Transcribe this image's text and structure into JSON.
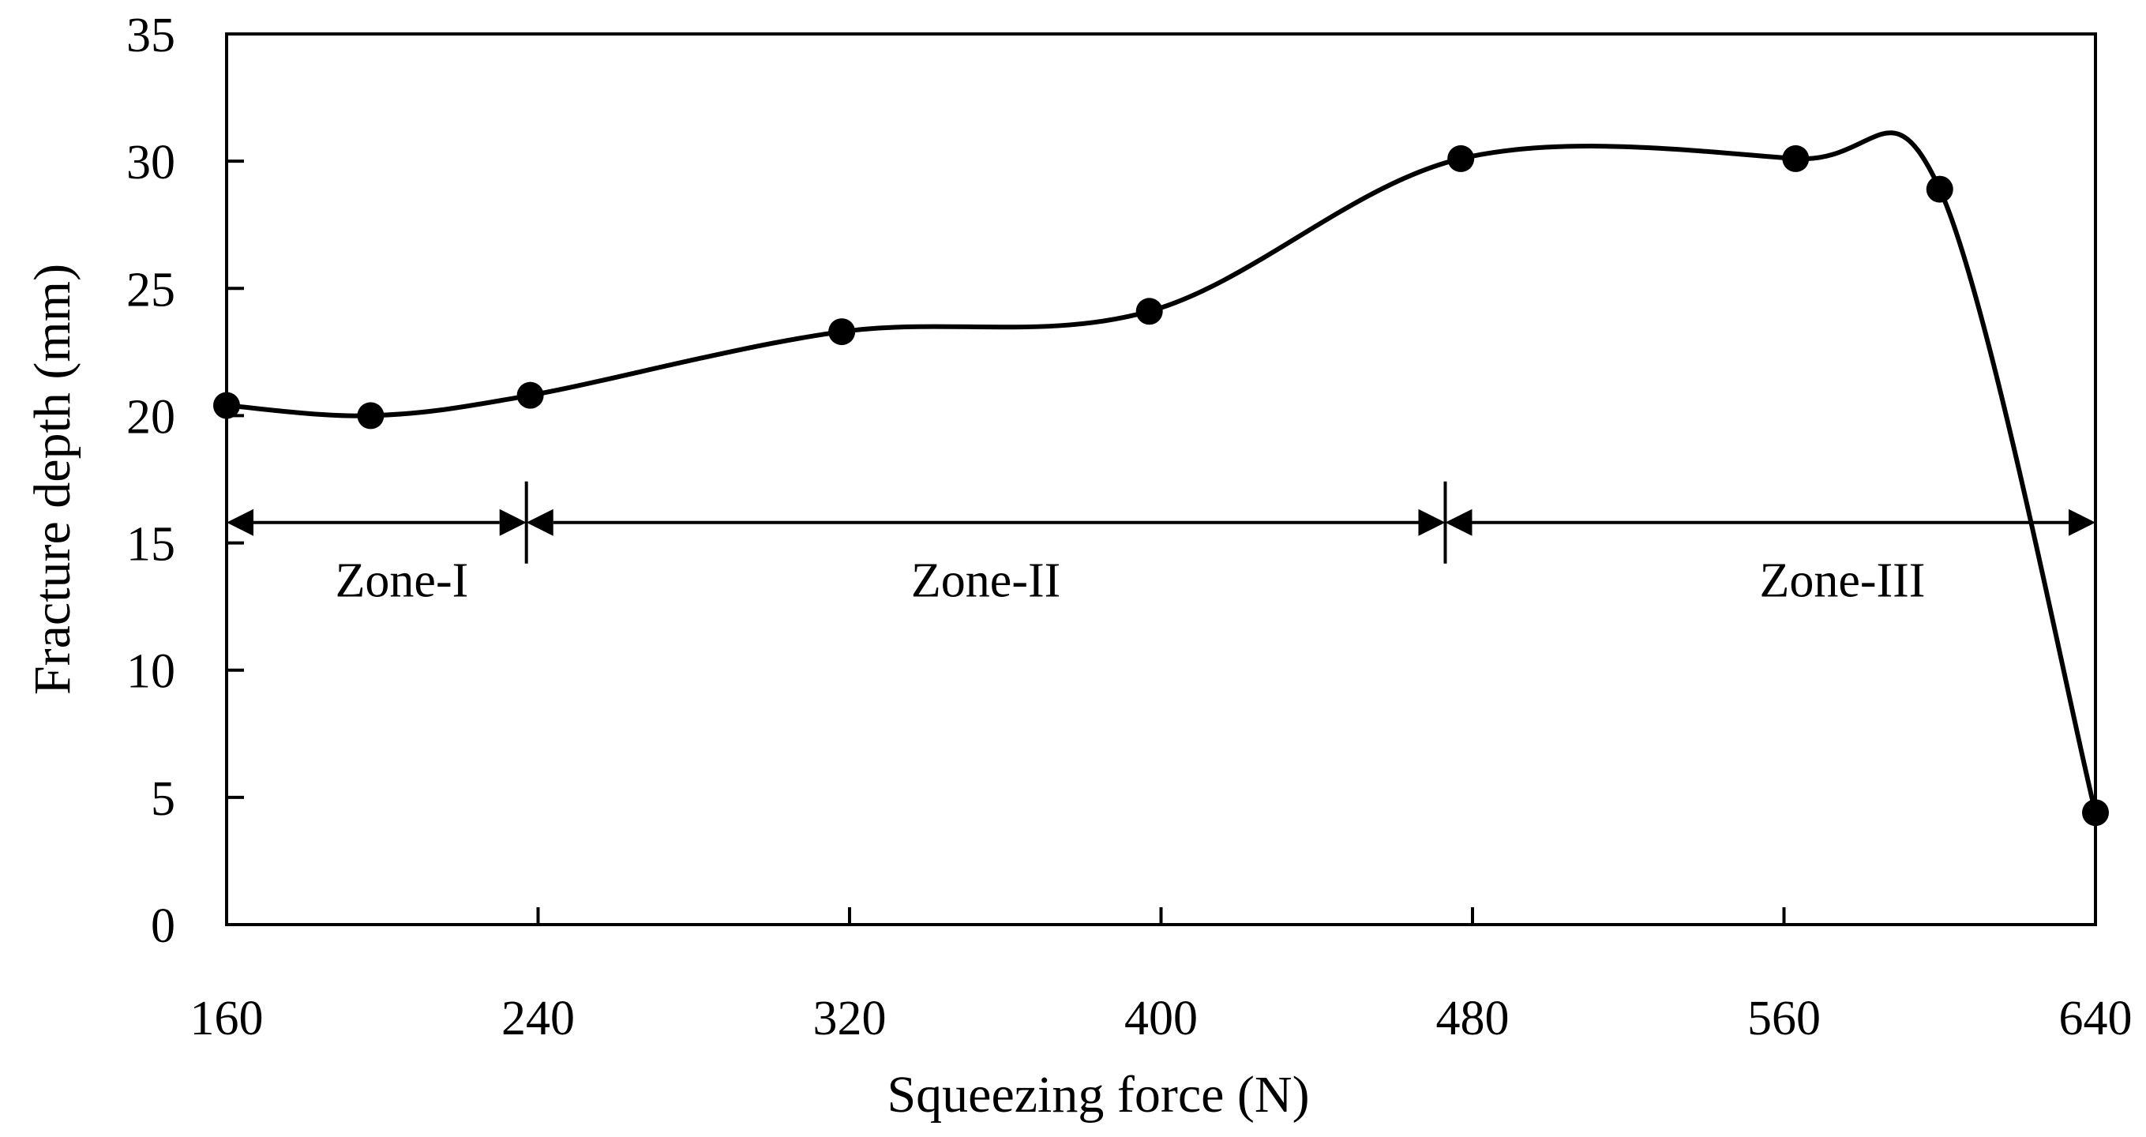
{
  "chart_data": {
    "type": "line",
    "title": "",
    "xlabel": "Squeezing force (N)",
    "ylabel": "Fracture depth (mm)",
    "xlim": [
      160,
      640
    ],
    "ylim": [
      0,
      35
    ],
    "xticks": [
      160,
      240,
      320,
      400,
      480,
      560,
      640
    ],
    "yticks": [
      0,
      5,
      10,
      15,
      20,
      25,
      30,
      35
    ],
    "grid": false,
    "legend": "none",
    "series": [
      {
        "name": "Fracture depth",
        "smooth": true,
        "marker": "circle",
        "color": "#000000",
        "x": [
          160,
          197,
          238,
          318,
          397,
          477,
          563,
          600,
          640
        ],
        "y": [
          20.4,
          20.0,
          20.8,
          23.3,
          24.1,
          30.1,
          30.1,
          28.9,
          4.4
        ]
      }
    ],
    "zones": [
      {
        "label": "Zone-I",
        "from": 160,
        "to": 237,
        "label_x": 205,
        "label_y": 12.9
      },
      {
        "label": "Zone-II",
        "from": 237,
        "to": 473,
        "label_x": 355,
        "label_y": 12.9
      },
      {
        "label": "Zone-III",
        "from": 473,
        "to": 640,
        "label_x": 575,
        "label_y": 12.9
      }
    ],
    "zone_arrow_y": 15.8
  }
}
